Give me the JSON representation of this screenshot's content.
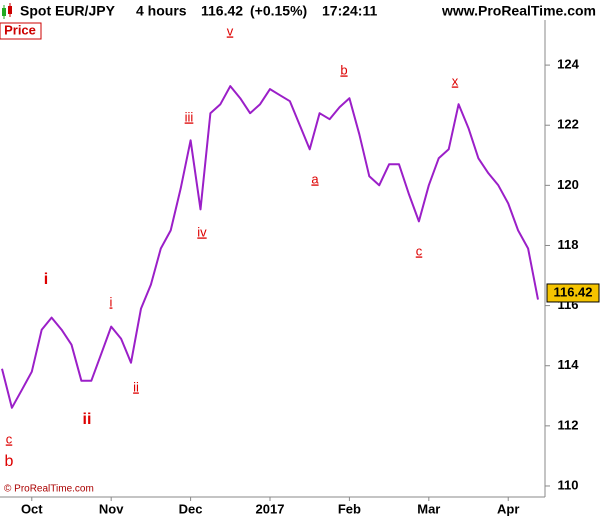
{
  "header": {
    "symbol": "Spot EUR/JPY",
    "timeframe": "4 hours",
    "change": "(+0.15%)",
    "time": "17:24:11",
    "site": "www.ProRealTime.com"
  },
  "footer": {
    "copyright": "© ProRealTime.com"
  },
  "chart_data": {
    "type": "line",
    "title": "Price",
    "last_price": 116.42,
    "categories": [
      null,
      null,
      null,
      "Oct",
      null,
      null,
      null,
      null,
      null,
      null,
      null,
      "Nov",
      null,
      null,
      null,
      null,
      null,
      null,
      null,
      "Dec",
      null,
      null,
      null,
      null,
      null,
      null,
      null,
      "2017",
      null,
      null,
      null,
      null,
      null,
      null,
      null,
      "Feb",
      null,
      null,
      null,
      null,
      null,
      null,
      null,
      "Mar",
      null,
      null,
      null,
      null,
      null,
      null,
      null,
      "Apr",
      null,
      null,
      null
    ],
    "series": [
      {
        "name": "Spot EUR/JPY",
        "color": "#9b1fc8",
        "values": [
          113.9,
          112.6,
          113.2,
          113.8,
          115.2,
          115.6,
          115.2,
          114.7,
          113.5,
          113.5,
          114.4,
          115.3,
          114.9,
          114.1,
          115.9,
          116.7,
          117.9,
          118.5,
          119.9,
          121.5,
          119.2,
          122.4,
          122.7,
          123.3,
          122.9,
          122.4,
          122.7,
          123.2,
          123.0,
          122.8,
          122.0,
          121.2,
          122.4,
          122.2,
          122.6,
          122.9,
          121.7,
          120.3,
          120.0,
          120.7,
          120.7,
          119.7,
          118.8,
          120.0,
          120.9,
          121.2,
          122.7,
          121.9,
          120.9,
          120.4,
          120.0,
          119.4,
          118.5,
          117.9,
          116.2
        ]
      }
    ],
    "ylim": [
      109.7,
      125.5
    ],
    "yticks": [
      110,
      112,
      114,
      116,
      118,
      120,
      122,
      124
    ],
    "grid": false,
    "annotations": [
      "c",
      "b",
      "i",
      "ii",
      "i",
      "ii",
      "iii",
      "iv",
      "v",
      "a",
      "b",
      "c",
      "x"
    ]
  }
}
